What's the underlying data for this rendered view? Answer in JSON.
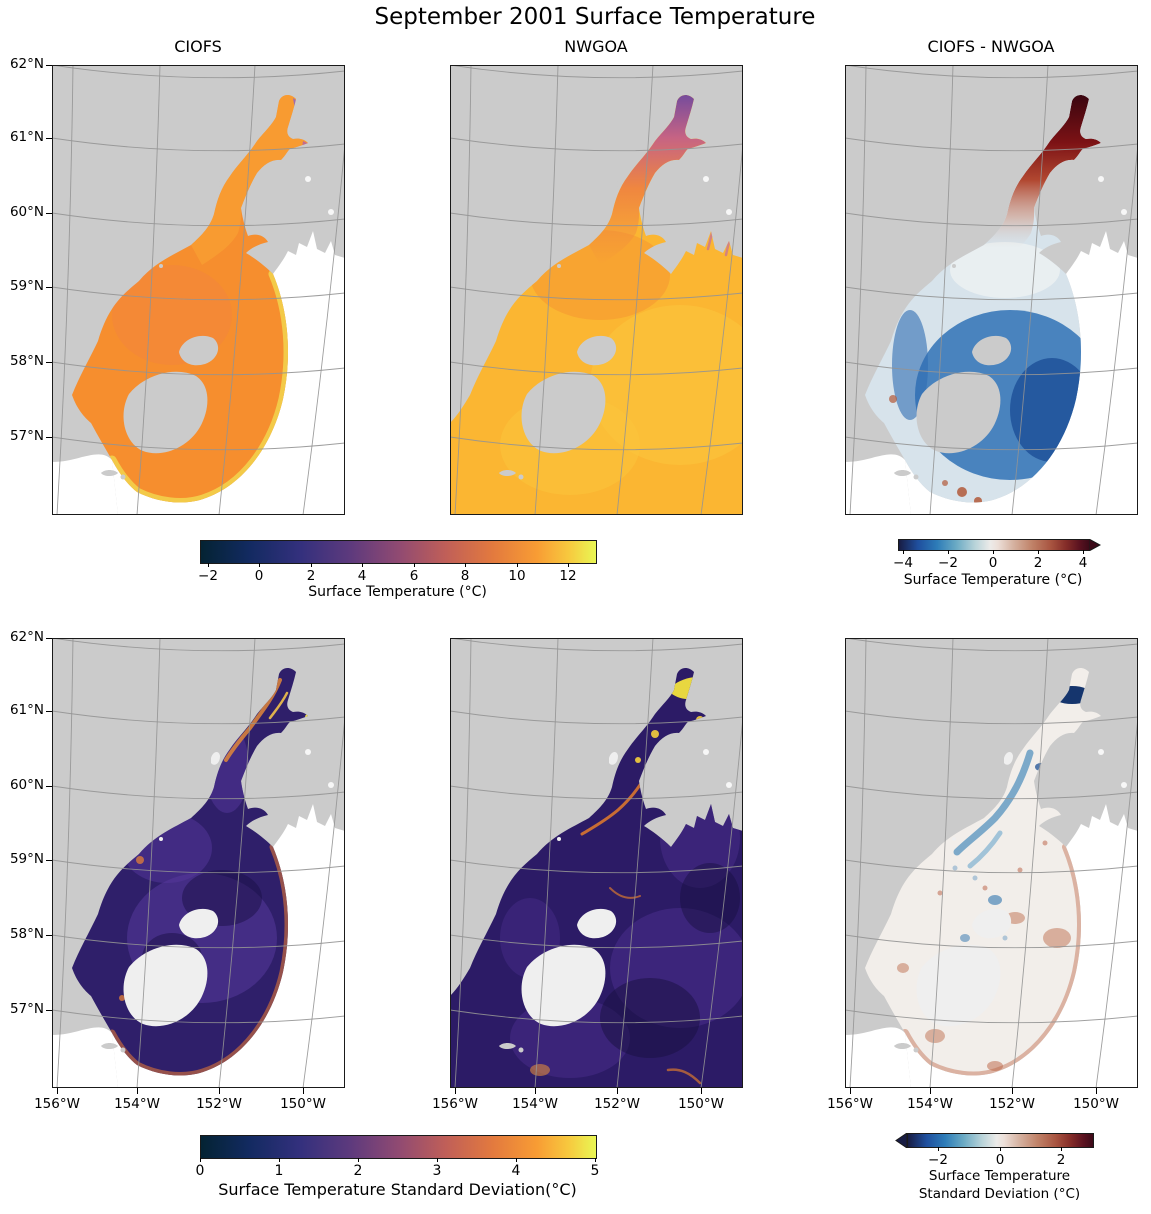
{
  "figure": {
    "title": "September 2001 Surface Temperature"
  },
  "panels": [
    {
      "id": "ciofs_temp",
      "title": "CIOFS",
      "row": 0,
      "col": 0
    },
    {
      "id": "nwgoa_temp",
      "title": "NWGOA",
      "row": 0,
      "col": 1
    },
    {
      "id": "diff_temp",
      "title": "CIOFS - NWGOA",
      "row": 0,
      "col": 2
    },
    {
      "id": "ciofs_std",
      "title": "",
      "row": 1,
      "col": 0
    },
    {
      "id": "nwgoa_std",
      "title": "",
      "row": 1,
      "col": 1
    },
    {
      "id": "diff_std",
      "title": "",
      "row": 1,
      "col": 2
    }
  ],
  "axes": {
    "lat_ticks": [
      "62°N",
      "61°N",
      "60°N",
      "59°N",
      "58°N",
      "57°N"
    ],
    "lon_ticks": [
      "156°W",
      "154°W",
      "152°W",
      "150°W"
    ]
  },
  "colorbars": [
    {
      "id": "temp",
      "label": "Surface Temperature (°C)",
      "tick_labels": [
        "−2",
        "0",
        "2",
        "4",
        "6",
        "8",
        "10",
        "12"
      ],
      "tick_values": [
        -2,
        0,
        2,
        4,
        6,
        8,
        10,
        12
      ],
      "range": [
        -2.3,
        13.05
      ],
      "extend": "none",
      "palette": "thermal"
    },
    {
      "id": "temp_diff",
      "label": "Surface Temperature (°C)",
      "tick_labels": [
        "−4",
        "−2",
        "0",
        "2",
        "4"
      ],
      "tick_values": [
        -4,
        -2,
        0,
        2,
        4
      ],
      "range": [
        -4.2,
        4.2
      ],
      "extend": "max",
      "palette": "balance"
    },
    {
      "id": "std",
      "label": "Surface Temperature Standard Deviation(°C)",
      "tick_labels": [
        "0",
        "1",
        "2",
        "3",
        "4",
        "5"
      ],
      "tick_values": [
        0,
        1,
        2,
        3,
        4,
        5
      ],
      "range": [
        0,
        5
      ],
      "extend": "none",
      "palette": "thermal"
    },
    {
      "id": "std_diff",
      "label_lines": [
        "Surface Temperature",
        "Standard Deviation (°C)"
      ],
      "tick_labels": [
        "−2",
        "0",
        "2"
      ],
      "tick_values": [
        -2,
        0,
        2
      ],
      "range": [
        -3,
        3
      ],
      "extend": "min",
      "palette": "balance"
    }
  ],
  "palettes": {
    "thermal": [
      [
        0,
        "#042333"
      ],
      [
        12,
        "#122a60"
      ],
      [
        25,
        "#33307d"
      ],
      [
        38,
        "#5e3a7d"
      ],
      [
        50,
        "#904a72"
      ],
      [
        62,
        "#c05f58"
      ],
      [
        74,
        "#e37a3e"
      ],
      [
        85,
        "#f89c34"
      ],
      [
        93,
        "#f7c83e"
      ],
      [
        100,
        "#e9f754"
      ]
    ],
    "balance": [
      [
        0,
        "#181c43"
      ],
      [
        10,
        "#1f4f9e"
      ],
      [
        20,
        "#2d7cb8"
      ],
      [
        30,
        "#6aaac4"
      ],
      [
        40,
        "#b8d3d9"
      ],
      [
        48,
        "#ecebe9"
      ],
      [
        52,
        "#ecdfd8"
      ],
      [
        60,
        "#d6b3a2"
      ],
      [
        70,
        "#c08268"
      ],
      [
        80,
        "#a85440"
      ],
      [
        88,
        "#842c28"
      ],
      [
        95,
        "#5a1220"
      ],
      [
        100,
        "#3c0a18"
      ]
    ]
  },
  "map_colors": {
    "land": "#cbcbcb",
    "island_light": "#efefef",
    "outside": "#ffffff",
    "grid": "#949494",
    "frame": "#1a1a1a",
    "ciofs_temp": {
      "sea": "#f68e2e",
      "sea2": "#f9a133",
      "rim": "#f3d04b",
      "warm": "#ee7d4e",
      "tip_a": "#9f6cb0",
      "tip_b": "#c06a92"
    },
    "nwgoa_temp": {
      "sea": "#fbb632",
      "light": "#fcc53c",
      "deep": "#f5922f",
      "head": "#6f46a2",
      "mid": "#c35f88",
      "low": "#ef8440",
      "fjord": "#c97792"
    },
    "diff_temp": {
      "base": "#d7e3eb",
      "pale": "#ebeff2",
      "maroon": "#3a050f",
      "red": "#b14730",
      "blue": "#3072b6",
      "darkblue": "#1d4f97",
      "spot": "#b25939"
    },
    "ciofs_std": {
      "base": "#2f1f6a",
      "purple": "#55389b",
      "dark": "#190f45",
      "rim": "#c2673f",
      "streak": "#e0873a",
      "streak2": "#f2c14a",
      "tip": "#f0dd4a",
      "spot": "#d97a3c"
    },
    "nwgoa_std": {
      "base": "#2c1b66",
      "purple": "#4a2e8c",
      "dark": "#17103f",
      "filament": "#d9772f",
      "yellow": "#f2e13e",
      "yellow2": "#f6d03c",
      "spot": "#e08a3c"
    },
    "diff_std": {
      "base": "#f2eeea",
      "blue": "#5e97c1",
      "blue2": "#7fb0d0",
      "navy": "#15356d",
      "red": "#c4765a",
      "red2": "#b9603f",
      "speck_r": "#b85a3e",
      "speck_b": "#6b9cc4"
    }
  },
  "chart_data": {
    "type": "heatmap",
    "subtype": "geographic model-comparison map grid, 2 rows x 3 columns",
    "figure_title": "September 2001 Surface Temperature",
    "region": "Cook Inlet and northwestern Gulf of Alaska (Kodiak Island area)",
    "lat_gridlines_deg_n": [
      57,
      58,
      59,
      60,
      61,
      62
    ],
    "lon_gridlines_deg_w": [
      156,
      154,
      152,
      150
    ],
    "grid_on": true,
    "panels": [
      {
        "row": 1,
        "col": 1,
        "title": "CIOFS",
        "variable": "Surface Temperature (°C)",
        "colormap": "thermal (dark navy → purple → orange → yellow)",
        "vmin": -2.3,
        "vmax": 13,
        "colorbar_ticks": [
          -2,
          0,
          2,
          4,
          6,
          8,
          10,
          12
        ],
        "values": {
          "model_domain_interior": "9–11 °C (orange)",
          "outer_domain_edge": "11.5–12.5 °C (yellow rim along fan-shaped boundary)",
          "upper_inlet_arm_tips": "4–7 °C (pink/purple)",
          "coverage": "fan-shaped CIOFS domain only; white = outside domain; grey = land"
        }
      },
      {
        "row": 1,
        "col": 2,
        "title": "NWGOA",
        "variable": "Surface Temperature (°C)",
        "colormap": "thermal",
        "vmin": -2.3,
        "vmax": 13,
        "colorbar_ticks": [
          -2,
          0,
          2,
          4,
          6,
          8,
          10,
          12
        ],
        "values": {
          "open_gulf_of_alaska": "11–12.5 °C (yellow-orange, full ocean coverage)",
          "cook_inlet_channel": "6–9 °C",
          "inlet_head_and_arms": "0–4 °C (purple)",
          "coastal_fjords": "5–8 °C (pink)"
        }
      },
      {
        "row": 1,
        "col": 3,
        "title": "CIOFS - NWGOA",
        "variable": "Surface Temperature difference (°C)",
        "colormap": "balance (blue–white–red diverging)",
        "vmin": -4.2,
        "vmax": 4.2,
        "extend": "max",
        "colorbar_ticks": [
          -4,
          -2,
          0,
          2,
          4
        ],
        "values": {
          "upper_cook_inlet": "+2 to >+4 °C (dark red, CIOFS warmer)",
          "mid_inlet": "−0.5 to +0.5 °C (near white)",
          "kodiak_and_outer_domain": "−2 to −4 °C (blue, CIOFS cooler)",
          "southern_tip_spots": "+1 to +2 °C (red specks)"
        }
      },
      {
        "row": 2,
        "col": 1,
        "title": "CIOFS standard deviation",
        "variable": "Surface Temperature Standard Deviation (°C)",
        "colormap": "thermal",
        "vmin": 0,
        "vmax": 5,
        "colorbar_ticks": [
          0,
          1,
          2,
          3,
          4,
          5
        ],
        "values": {
          "most_of_domain": "0.3–1 °C (dark indigo/purple)",
          "domain_edge_arcs": "1.5–2.5 °C (orange)",
          "upper_inlet_streaks": "2–4.5 °C (orange/yellow filaments)"
        }
      },
      {
        "row": 2,
        "col": 2,
        "title": "NWGOA standard deviation",
        "variable": "Surface Temperature Standard Deviation (°C)",
        "colormap": "thermal",
        "vmin": 0,
        "vmax": 5,
        "colorbar_ticks": [
          0,
          1,
          2,
          3,
          4,
          5
        ],
        "values": {
          "open_gulf": "0.3–1 °C with eddy texture",
          "coastal_filaments": "1.5–3 °C (orange)",
          "inlet_head": "4–5 °C (bright yellow)"
        }
      },
      {
        "row": 2,
        "col": 3,
        "title": "CIOFS - NWGOA standard deviation",
        "variable": "Surface Temperature Standard Deviation difference (°C)",
        "colormap": "balance",
        "vmin": -3,
        "vmax": 3,
        "extend": "min",
        "colorbar_ticks": [
          -2,
          0,
          2
        ],
        "values": {
          "most_of_domain": "≈0 °C (near white)",
          "mid_inlet_channel": "−1 to −3 °C (blue streaks)",
          "upper_inlet_blotch": "≈−3 °C (dark navy)",
          "southern_outer_rim": "+0.5 to +2 °C (red patches)"
        }
      }
    ]
  }
}
